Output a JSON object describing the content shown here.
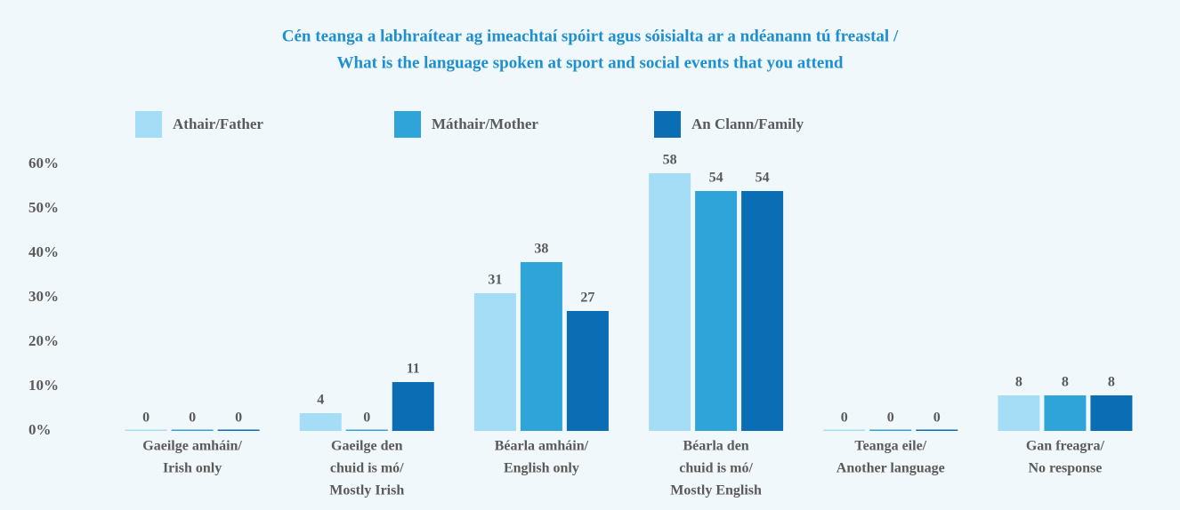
{
  "chart_data": {
    "type": "bar",
    "title": [
      "Cén teanga a labhraítear ag imeachtaí spóirt agus sóisialta ar a ndéanann tú freastal /",
      "What is the language spoken at sport and social events that you attend"
    ],
    "categories": [
      [
        "Gaeilge amháin/",
        "Irish only"
      ],
      [
        "Gaeilge den",
        "chuid is mó/",
        "Mostly Irish"
      ],
      [
        "Béarla amháin/",
        "English only"
      ],
      [
        "Béarla den",
        "chuid is mó/",
        "Mostly English"
      ],
      [
        "Teanga eile/",
        "Another language"
      ],
      [
        "Gan freagra/",
        "No response"
      ]
    ],
    "series": [
      {
        "name": "Athair/Father",
        "color": "#a6ddf6",
        "values": [
          0,
          4,
          31,
          58,
          0,
          8
        ]
      },
      {
        "name": "Máthair/Mother",
        "color": "#2ea4d8",
        "values": [
          0,
          0,
          38,
          54,
          0,
          8
        ]
      },
      {
        "name": "An Clann/Family",
        "color": "#0b6db3",
        "values": [
          0,
          11,
          27,
          54,
          0,
          8
        ]
      }
    ],
    "ylim": [
      0,
      60
    ],
    "yticks": [
      {
        "value": 0,
        "label": "0%"
      },
      {
        "value": 10,
        "label": "10%"
      },
      {
        "value": 20,
        "label": "20%"
      },
      {
        "value": 30,
        "label": "30%"
      },
      {
        "value": 40,
        "label": "40%"
      },
      {
        "value": 50,
        "label": "50%"
      },
      {
        "value": 60,
        "label": "60%"
      }
    ],
    "grid": false,
    "legend": "top"
  }
}
